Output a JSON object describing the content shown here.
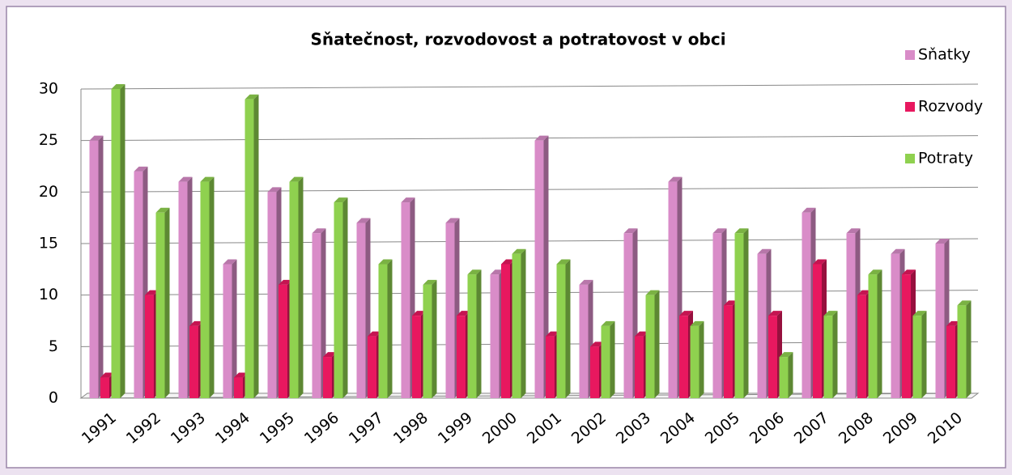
{
  "chart_data": {
    "type": "bar",
    "title": "Sňatečnost, rozvodovost a potratovost v obci",
    "categories": [
      "1991",
      "1992",
      "1993",
      "1994",
      "1995",
      "1996",
      "1997",
      "1998",
      "1999",
      "2000",
      "2001",
      "2002",
      "2003",
      "2004",
      "2005",
      "2006",
      "2007",
      "2008",
      "2009",
      "2010"
    ],
    "series": [
      {
        "name": "Sňatky",
        "color": "#d98cc8",
        "values": [
          25,
          22,
          21,
          13,
          20,
          16,
          17,
          19,
          17,
          12,
          25,
          11,
          16,
          21,
          16,
          14,
          18,
          16,
          14,
          15
        ]
      },
      {
        "name": "Rozvody",
        "color": "#e8185f",
        "values": [
          2,
          10,
          7,
          2,
          11,
          4,
          6,
          8,
          8,
          13,
          6,
          5,
          6,
          8,
          9,
          8,
          13,
          10,
          12,
          7
        ]
      },
      {
        "name": "Potraty",
        "color": "#8fd14f",
        "values": [
          30,
          18,
          21,
          29,
          21,
          19,
          13,
          11,
          12,
          14,
          13,
          7,
          10,
          7,
          16,
          4,
          8,
          12,
          8,
          9
        ]
      }
    ],
    "ylim": [
      0,
      30
    ],
    "yticks": [
      0,
      5,
      10,
      15,
      20,
      25,
      30
    ],
    "grid": true,
    "legend": "right"
  }
}
